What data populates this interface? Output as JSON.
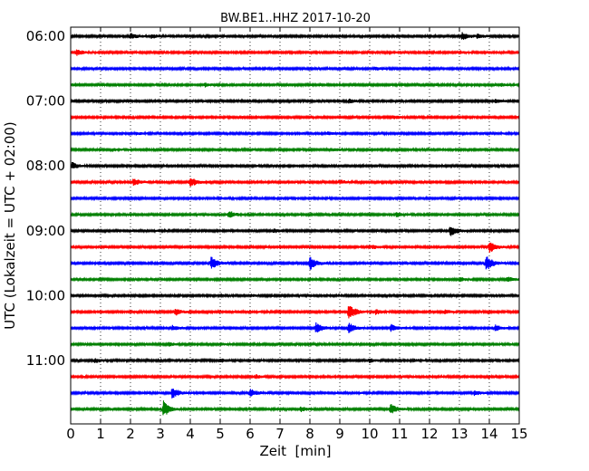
{
  "chart_data": {
    "type": "line",
    "title": "BW.BE1..HHZ 2017-10-20",
    "xlabel": "Zeit  [min]",
    "ylabel": "UTC (Lokalzeit = UTC + 02:00)",
    "xlim": [
      0,
      15
    ],
    "xticks": [
      "0",
      "1",
      "2",
      "3",
      "4",
      "5",
      "6",
      "7",
      "8",
      "9",
      "10",
      "11",
      "12",
      "13",
      "14",
      "15"
    ],
    "row_labels": [
      "06:00",
      "07:00",
      "08:00",
      "09:00",
      "10:00",
      "11:00"
    ],
    "row_label_rows": [
      0,
      4,
      8,
      12,
      16,
      20
    ],
    "grid": "vertical dotted lines at each minute",
    "colors": [
      "#000000",
      "#ff0000",
      "#0000ff",
      "#008000"
    ],
    "rows": [
      {
        "start": "06:00",
        "color": "#000000",
        "events": [
          [
            2.0,
            0.5
          ],
          [
            2.7,
            0.4
          ],
          [
            13.1,
            0.7
          ],
          [
            13.6,
            0.3
          ]
        ]
      },
      {
        "start": "06:15",
        "color": "#ff0000",
        "events": [
          [
            0.2,
            0.5
          ],
          [
            13.0,
            0.25
          ]
        ]
      },
      {
        "start": "06:30",
        "color": "#0000ff",
        "events": [
          [
            10.2,
            0.25
          ]
        ]
      },
      {
        "start": "06:45",
        "color": "#008000",
        "events": [
          [
            4.5,
            0.3
          ],
          [
            14.4,
            0.2
          ]
        ]
      },
      {
        "start": "07:00",
        "color": "#000000",
        "events": [
          [
            9.3,
            0.35
          ],
          [
            14.2,
            0.35
          ]
        ]
      },
      {
        "start": "07:15",
        "color": "#ff0000",
        "events": [
          [
            10.8,
            0.3
          ]
        ]
      },
      {
        "start": "07:30",
        "color": "#0000ff",
        "events": [
          [
            2.2,
            0.2
          ],
          [
            8.6,
            0.3
          ]
        ]
      },
      {
        "start": "07:45",
        "color": "#008000",
        "events": [
          [
            1.4,
            0.2
          ],
          [
            8.8,
            0.2
          ]
        ]
      },
      {
        "start": "08:00",
        "color": "#000000",
        "events": [
          [
            0.05,
            0.6
          ]
        ]
      },
      {
        "start": "08:15",
        "color": "#ff0000",
        "events": [
          [
            2.1,
            0.7
          ],
          [
            4.0,
            0.9
          ],
          [
            9.0,
            0.3
          ]
        ]
      },
      {
        "start": "08:30",
        "color": "#0000ff",
        "events": [
          [
            5.1,
            0.15
          ]
        ]
      },
      {
        "start": "08:45",
        "color": "#008000",
        "events": [
          [
            5.3,
            0.6
          ],
          [
            10.9,
            0.4
          ]
        ]
      },
      {
        "start": "09:00",
        "color": "#000000",
        "events": [
          [
            6.8,
            0.3
          ],
          [
            12.7,
            1.0
          ]
        ]
      },
      {
        "start": "09:15",
        "color": "#ff0000",
        "events": [
          [
            10.1,
            0.3
          ],
          [
            14.0,
            1.1
          ]
        ]
      },
      {
        "start": "09:30",
        "color": "#0000ff",
        "events": [
          [
            4.7,
            1.2
          ],
          [
            8.0,
            1.2
          ],
          [
            13.9,
            1.4
          ]
        ]
      },
      {
        "start": "09:45",
        "color": "#008000",
        "events": [
          [
            13.0,
            0.35
          ],
          [
            14.6,
            0.5
          ]
        ]
      },
      {
        "start": "10:00",
        "color": "#000000",
        "events": [
          [
            6.0,
            0.2
          ]
        ]
      },
      {
        "start": "10:15",
        "color": "#ff0000",
        "events": [
          [
            3.5,
            0.6
          ],
          [
            9.3,
            1.5
          ],
          [
            10.2,
            0.4
          ],
          [
            12.5,
            0.3
          ]
        ]
      },
      {
        "start": "10:30",
        "color": "#0000ff",
        "events": [
          [
            3.4,
            0.4
          ],
          [
            8.2,
            1.0
          ],
          [
            9.3,
            0.9
          ],
          [
            10.7,
            0.7
          ],
          [
            14.2,
            0.6
          ]
        ]
      },
      {
        "start": "10:45",
        "color": "#008000",
        "events": [
          [
            3.3,
            0.3
          ],
          [
            5.0,
            0.2
          ]
        ]
      },
      {
        "start": "11:00",
        "color": "#000000",
        "events": [
          [
            0.8,
            0.35
          ],
          [
            5.0,
            0.3
          ],
          [
            10.0,
            0.35
          ],
          [
            11.5,
            0.2
          ]
        ]
      },
      {
        "start": "11:15",
        "color": "#ff0000",
        "events": [
          [
            6.2,
            0.3
          ]
        ]
      },
      {
        "start": "11:30",
        "color": "#0000ff",
        "events": [
          [
            3.4,
            1.0
          ],
          [
            6.0,
            0.7
          ],
          [
            13.5,
            0.4
          ]
        ]
      },
      {
        "start": "11:45",
        "color": "#008000",
        "events": [
          [
            3.1,
            1.5
          ],
          [
            7.7,
            0.4
          ],
          [
            10.7,
            1.0
          ]
        ]
      }
    ]
  }
}
